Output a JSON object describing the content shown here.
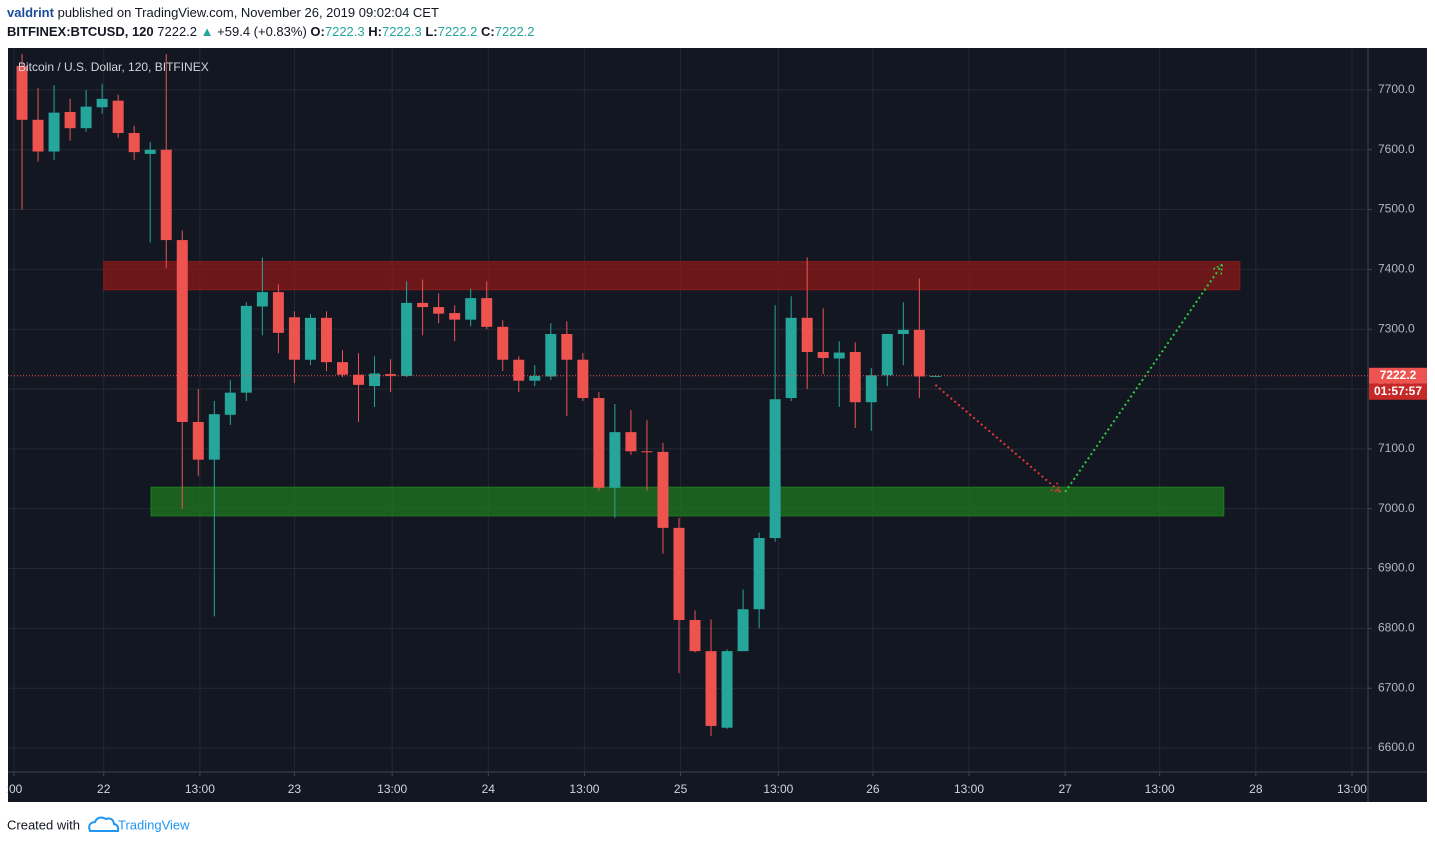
{
  "header": {
    "author": "valdrint",
    "published": "published on TradingView.com, November 26, 2019 09:02:04 CET",
    "symbol": "BITFINEX:BTCUSD, 120",
    "last": "7222.2",
    "arrow": "▲",
    "change": "+59.4 (+0.83%)",
    "ohlc": [
      {
        "label": "O:",
        "value": "7222.3"
      },
      {
        "label": "H:",
        "value": "7222.3"
      },
      {
        "label": "L:",
        "value": "7222.2"
      },
      {
        "label": "C:",
        "value": "7222.2"
      }
    ]
  },
  "chart_data": {
    "type": "candlestick",
    "title": "Bitcoin / U.S. Dollar, 120, BITFINEX",
    "x": [
      0,
      1,
      2,
      3,
      4,
      5,
      6,
      7,
      8,
      9,
      10,
      11,
      12,
      13,
      14,
      15,
      16,
      17,
      18,
      19,
      20,
      21,
      22,
      23,
      24,
      25,
      26,
      27,
      28,
      29,
      30,
      31,
      32,
      33,
      34,
      35,
      36,
      37,
      38,
      39,
      40,
      41,
      42,
      43,
      44,
      45,
      46,
      47,
      48,
      49,
      50,
      51,
      52,
      53,
      54,
      55,
      56,
      57
    ],
    "open": [
      7740,
      7650,
      7597,
      7663,
      7636,
      7671,
      7682,
      7628,
      7593,
      7600,
      7449,
      7145,
      7082,
      7157,
      7194,
      7338,
      7362,
      7320,
      7249,
      7319,
      7245,
      7224,
      7205,
      7225,
      7222,
      7344,
      7337,
      7327,
      7316,
      7352,
      7304,
      7249,
      7214,
      7221,
      7292,
      7249,
      7185,
      7035,
      7128,
      7096,
      7095,
      6968,
      6814,
      6762,
      6634,
      6762,
      6832,
      6951,
      7185,
      7319,
      7262,
      7251,
      7262,
      7178,
      7223,
      7292,
      7299,
      7221
    ],
    "high": [
      7760,
      7703,
      7708,
      7685,
      7700,
      7710,
      7692,
      7640,
      7613,
      7760,
      7465,
      7200,
      7180,
      7215,
      7345,
      7420,
      7375,
      7330,
      7325,
      7330,
      7265,
      7260,
      7255,
      7250,
      7380,
      7383,
      7360,
      7340,
      7368,
      7380,
      7315,
      7255,
      7240,
      7310,
      7313,
      7260,
      7195,
      7175,
      7165,
      7148,
      7110,
      6985,
      6830,
      6815,
      6765,
      6865,
      6960,
      7340,
      7355,
      7420,
      7335,
      7280,
      7278,
      7235,
      7292,
      7345,
      7385,
      7223
    ],
    "low": [
      7500,
      7580,
      7583,
      7615,
      7630,
      7660,
      7620,
      7583,
      7445,
      7402,
      7000,
      7055,
      6820,
      7140,
      7180,
      7290,
      7260,
      7210,
      7240,
      7230,
      7220,
      7145,
      7170,
      7195,
      7220,
      7290,
      7310,
      7280,
      7305,
      7300,
      7230,
      7195,
      7205,
      7215,
      7155,
      7180,
      7030,
      6985,
      7090,
      7030,
      6925,
      6725,
      6760,
      6620,
      6632,
      6762,
      6800,
      6945,
      7180,
      7200,
      7225,
      7170,
      7135,
      7130,
      7205,
      7240,
      7185,
      7221
    ],
    "close": [
      7650,
      7597,
      7662,
      7636,
      7672,
      7685,
      7628,
      7596,
      7600,
      7449,
      7145,
      7082,
      7158,
      7194,
      7339,
      7362,
      7294,
      7249,
      7319,
      7245,
      7224,
      7207,
      7226,
      7222,
      7344,
      7337,
      7326,
      7316,
      7352,
      7304,
      7249,
      7214,
      7222,
      7292,
      7249,
      7185,
      7035,
      7128,
      7096,
      7095,
      6968,
      6814,
      6762,
      6637,
      6762,
      6832,
      6951,
      7183,
      7319,
      7262,
      7252,
      7261,
      7178,
      7223,
      7292,
      7299,
      7221,
      7222
    ],
    "up_color": "#26a69a",
    "down_color": "#ef5350",
    "xlim": [
      -0.875,
      84.0
    ],
    "ylim": [
      6560,
      7770
    ],
    "xticks": [
      {
        "value": -0.5,
        "label": ":00"
      },
      {
        "value": 5.1,
        "label": "22"
      },
      {
        "value": 11.1,
        "label": "13:00"
      },
      {
        "value": 17.0,
        "label": "23"
      },
      {
        "value": 23.1,
        "label": "13:00"
      },
      {
        "value": 29.1,
        "label": "24"
      },
      {
        "value": 35.1,
        "label": "13:00"
      },
      {
        "value": 41.1,
        "label": "25"
      },
      {
        "value": 47.2,
        "label": "13:00"
      },
      {
        "value": 53.1,
        "label": "26"
      },
      {
        "value": 59.1,
        "label": "13:00"
      },
      {
        "value": 65.1,
        "label": "27"
      },
      {
        "value": 71.0,
        "label": "13:00"
      },
      {
        "value": 77.0,
        "label": "28"
      },
      {
        "value": 83.0,
        "label": "13:00"
      }
    ],
    "yticks": [
      {
        "value": 6600,
        "label": "6600.0"
      },
      {
        "value": 6700,
        "label": "6700.0"
      },
      {
        "value": 6800,
        "label": "6800.0"
      },
      {
        "value": 6900,
        "label": "6900.0"
      },
      {
        "value": 7000,
        "label": "7000.0"
      },
      {
        "value": 7100,
        "label": "7100.0"
      },
      {
        "value": 7200,
        "label": "7200.0"
      },
      {
        "value": 7300,
        "label": "7300.0"
      },
      {
        "value": 7400,
        "label": "7400.0"
      },
      {
        "value": 7500,
        "label": "7500.0"
      },
      {
        "value": 7600,
        "label": "7600.0"
      },
      {
        "value": 7700,
        "label": "7700.0"
      }
    ],
    "grid": true,
    "zones": [
      {
        "x": [
          5.1,
          76.0
        ],
        "y": [
          7366,
          7413
        ],
        "color": "#8b1a1a"
      },
      {
        "x": [
          8.05,
          75.0
        ],
        "y": [
          6988,
          7036
        ],
        "color": "#1f7a1f"
      }
    ],
    "projections": [
      {
        "x": [
          57,
          64.8
        ],
        "y": [
          7207,
          7028
        ],
        "color": "#e53935"
      },
      {
        "x": [
          65.1,
          74.9
        ],
        "y": [
          7028,
          7408
        ],
        "color": "#2ecc40"
      }
    ],
    "price_line": {
      "value": 7222.2,
      "label": "7222.2",
      "countdown": "01:57:57",
      "color": "#ef5350"
    }
  },
  "footer": {
    "created": "Created with",
    "brand": "TradingView"
  }
}
